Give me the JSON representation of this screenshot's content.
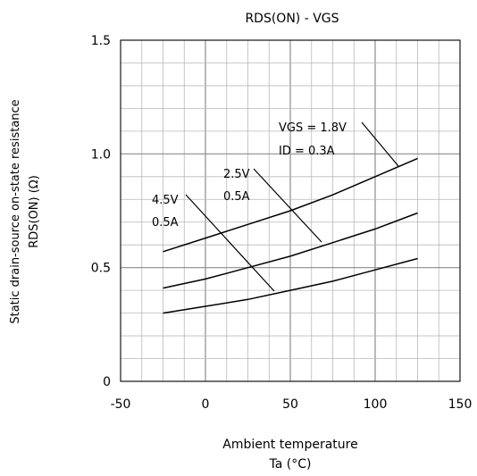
{
  "chart_data": {
    "type": "line",
    "title": "RDS(ON) - VGS",
    "xlabel": "Ambient temperature",
    "xlabel_unit": "Ta (°C)",
    "ylabel": "Static drain-source on-state resistance",
    "ylabel_unit": "RDS(ON) (Ω)",
    "xlim": [
      -50,
      150
    ],
    "ylim": [
      0,
      1.5
    ],
    "x_ticks": [
      "-50",
      "0",
      "50",
      "100",
      "150"
    ],
    "y_ticks": [
      "0",
      "0.5",
      "1.0",
      "1.5"
    ],
    "grid": true,
    "series": [
      {
        "name": "VGS = 1.8V, ID = 0.3A",
        "x": [
          -25,
          0,
          25,
          50,
          75,
          100,
          125
        ],
        "y": [
          0.57,
          0.63,
          0.69,
          0.75,
          0.82,
          0.9,
          0.98
        ]
      },
      {
        "name": "2.5V, 0.5A",
        "x": [
          -25,
          0,
          25,
          50,
          75,
          100,
          125
        ],
        "y": [
          0.41,
          0.45,
          0.5,
          0.55,
          0.61,
          0.67,
          0.74
        ]
      },
      {
        "name": "4.5V, 0.5A",
        "x": [
          -25,
          0,
          25,
          50,
          75,
          100,
          125
        ],
        "y": [
          0.3,
          0.33,
          0.36,
          0.4,
          0.44,
          0.49,
          0.54
        ]
      }
    ],
    "annotations": [
      {
        "line1": "VGS = 1.8V",
        "line2": "ID = 0.3A"
      },
      {
        "line1": "2.5V",
        "line2": "0.5A"
      },
      {
        "line1": "4.5V",
        "line2": "0.5A"
      }
    ]
  }
}
